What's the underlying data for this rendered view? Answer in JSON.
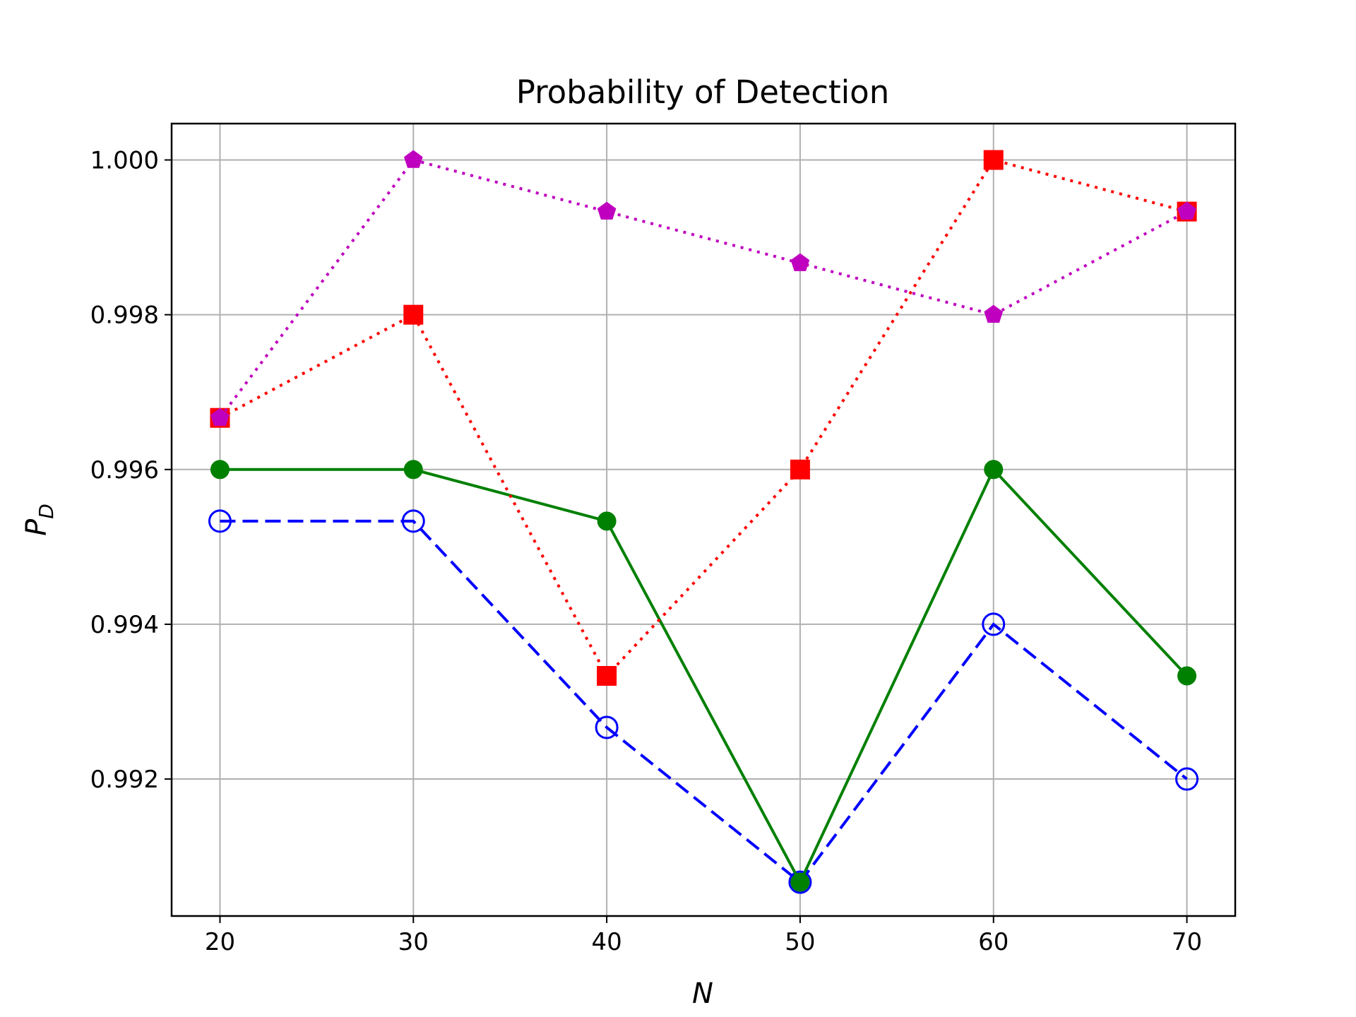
{
  "chart_data": {
    "type": "line",
    "title": "Probability of Detection",
    "xlabel": "N",
    "ylabel": {
      "base": "P",
      "subscript": "D"
    },
    "x": [
      20,
      30,
      40,
      50,
      60,
      70
    ],
    "xlim": [
      17.5,
      72.5
    ],
    "ylim": [
      0.99023,
      1.00047
    ],
    "xticks": [
      "20",
      "30",
      "40",
      "50",
      "60",
      "70"
    ],
    "yticks": [
      "0.992",
      "0.994",
      "0.996",
      "0.998",
      "1.000"
    ],
    "grid": true,
    "legend": "none",
    "series": [
      {
        "values": [
          0.995333,
          0.995333,
          0.992667,
          0.990667,
          0.994,
          0.992
        ],
        "color": "#0000ff",
        "linestyle": "dashed",
        "marker": "open-circle"
      },
      {
        "values": [
          0.996,
          0.996,
          0.995333,
          0.990667,
          0.996,
          0.993333
        ],
        "color": "#008000",
        "linestyle": "solid",
        "marker": "filled-circle"
      },
      {
        "values": [
          0.996667,
          0.998,
          0.993333,
          0.996,
          1.0,
          0.999333
        ],
        "color": "#ff0000",
        "linestyle": "dotted",
        "marker": "square"
      },
      {
        "values": [
          0.996667,
          1.0,
          0.999333,
          0.998667,
          0.998,
          0.999333
        ],
        "color": "#bf00bf",
        "linestyle": "dotted",
        "marker": "pentagon"
      }
    ]
  }
}
